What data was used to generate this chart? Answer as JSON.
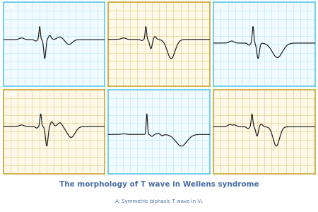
{
  "title": "The morphology of T wave in Wellens syndrome",
  "subtitle": "A: Symmetric biphasic T wave in V₂",
  "panels": [
    {
      "label": "A",
      "sub": "V₂",
      "border": "#5bc8e8",
      "label_bg": "#5bc8e8",
      "grid_color": "#b8e8f8",
      "panel_bg": "#f0faff"
    },
    {
      "label": "B",
      "sub": "V₂",
      "border": "#c8a832",
      "label_bg": "#c8a832",
      "grid_color": "#ddc878",
      "panel_bg": "#fdf8e8"
    },
    {
      "label": "C",
      "sub": "V₂",
      "border": "#5bc8e8",
      "label_bg": "#5bc8e8",
      "grid_color": "#b8e8f8",
      "panel_bg": "#f0faff"
    },
    {
      "label": "D",
      "sub": "V₂",
      "border": "#c8a832",
      "label_bg": "#c8a832",
      "grid_color": "#ddc878",
      "panel_bg": "#fdf8e8"
    },
    {
      "label": "E",
      "sub": "V₂",
      "border": "#5bc8e8",
      "label_bg": "#5bc8e8",
      "grid_color": "#b8e8f8",
      "panel_bg": "#f0faff"
    },
    {
      "label": "F",
      "sub": "V₂",
      "border": "#c8a832",
      "label_bg": "#c8a832",
      "grid_color": "#ddc878",
      "panel_bg": "#fdf8e8"
    }
  ],
  "bg_color": "#ffffff",
  "text_color": "#4a6fa5"
}
